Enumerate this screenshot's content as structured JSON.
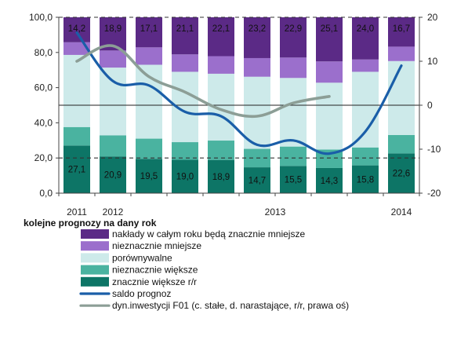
{
  "chart_data": {
    "type": "bar",
    "stacked": true,
    "categories": [
      "2011",
      "2012a",
      "2012b",
      "2012c",
      "2012d",
      "2013a",
      "2013b",
      "2013c",
      "2013d",
      "2014"
    ],
    "x_tick_labels": [
      {
        "index": 0,
        "label": "2011"
      },
      {
        "index": 1,
        "label": "2012"
      },
      {
        "index": 5.5,
        "label": "2013"
      },
      {
        "index": 9,
        "label": "2014"
      }
    ],
    "y_left": {
      "ticks": [
        "0,0",
        "20,0",
        "40,0",
        "60,0",
        "80,0",
        "100,0"
      ],
      "ylim": [
        0,
        100
      ]
    },
    "y_right": {
      "ticks": [
        "-20",
        "-10",
        "0",
        "10",
        "20"
      ],
      "ylim": [
        -20,
        20
      ]
    },
    "grid": "horizontal dashed at 20 and 100, solid at 50 (right-axis zero)",
    "legend": {
      "title": "kolejne prognozy na dany rok",
      "placement": "bottom",
      "entries": [
        {
          "label": "nakłady w całym roku będą znacznie mniejsze",
          "color": "#5b2a86",
          "kind": "box"
        },
        {
          "label": "nieznacznie mniejsze",
          "color": "#9b6fcc",
          "kind": "box"
        },
        {
          "label": "porównywalne",
          "color": "#cdeaea",
          "kind": "box"
        },
        {
          "label": "nieznacznie większe",
          "color": "#4ab3a0",
          "kind": "box"
        },
        {
          "label": "znacznie większe r/r",
          "color": "#0d7566",
          "kind": "box"
        },
        {
          "label": "saldo prognoz",
          "color": "#1a5ea8",
          "kind": "line"
        },
        {
          "label": "dyn.inwestycji F01 (c. stałe, d. narastające, r/r, prawa oś)",
          "color": "#8c9e96",
          "kind": "line"
        }
      ]
    },
    "series": [
      {
        "name": "znacznie większe r/r",
        "color": "#0d7566",
        "values": [
          27.1,
          20.9,
          19.5,
          19.0,
          18.9,
          14.7,
          15.5,
          14.3,
          15.8,
          22.6
        ],
        "labels": [
          "27,1",
          "20,9",
          "19,5",
          "19,0",
          "18,9",
          "14,7",
          "15,5",
          "14,3",
          "15,8",
          "22,6"
        ]
      },
      {
        "name": "nieznacznie większe",
        "color": "#4ab3a0",
        "values": [
          10.5,
          12.0,
          11.5,
          10.0,
          11.0,
          10.5,
          11.0,
          10.5,
          10.2,
          10.5
        ]
      },
      {
        "name": "porównywalne",
        "color": "#cdeaea",
        "values": [
          41.0,
          38.5,
          42.0,
          40.0,
          38.0,
          41.0,
          39.0,
          38.0,
          43.0,
          42.0
        ]
      },
      {
        "name": "nieznacznie mniejsze",
        "color": "#9b6fcc",
        "values": [
          7.2,
          9.7,
          9.9,
          9.9,
          10.0,
          10.6,
          11.6,
          12.1,
          7.0,
          8.2
        ]
      },
      {
        "name": "nakłady w całym roku będą znacznie mniejsze",
        "color": "#5b2a86",
        "values": [
          14.2,
          18.9,
          17.1,
          21.1,
          22.1,
          23.2,
          22.9,
          25.1,
          24.0,
          16.7
        ],
        "labels": [
          "14,2",
          "18,9",
          "17,1",
          "21,1",
          "22,1",
          "23,2",
          "22,9",
          "25,1",
          "24,0",
          "16,7"
        ]
      }
    ],
    "lines": [
      {
        "name": "saldo prognoz",
        "axis": "right",
        "color": "#1a5ea8",
        "smooth": true,
        "points": [
          [
            0,
            16.5
          ],
          [
            1,
            5.5
          ],
          [
            2,
            4.5
          ],
          [
            3,
            -1.5
          ],
          [
            4,
            -2.5
          ],
          [
            5,
            -9.0
          ],
          [
            6,
            -8.0
          ],
          [
            7,
            -11.0
          ],
          [
            8,
            -6.0
          ],
          [
            9,
            9.0
          ]
        ]
      },
      {
        "name": "dyn.inwestycji F01 (c. stałe, d. narastające, r/r, prawa oś)",
        "axis": "right",
        "color": "#8c9e96",
        "smooth": true,
        "points": [
          [
            0,
            10.0
          ],
          [
            1,
            13.5
          ],
          [
            2,
            6.5
          ],
          [
            3,
            3.0
          ],
          [
            4,
            -1.0
          ],
          [
            5,
            -2.5
          ],
          [
            6,
            0.5
          ],
          [
            7,
            2.0
          ]
        ]
      }
    ]
  }
}
